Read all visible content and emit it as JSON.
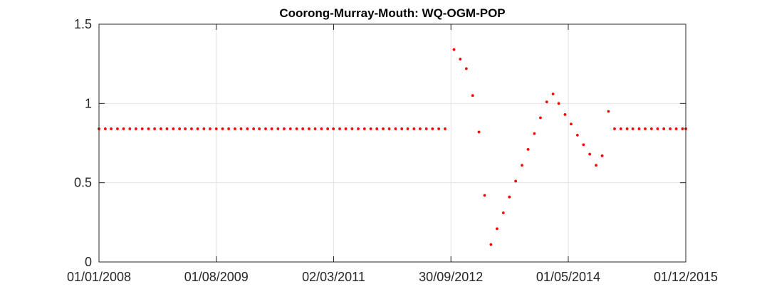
{
  "chart_data": {
    "type": "scatter",
    "title": "Coorong-Murray-Mouth: WQ-OGM-POP",
    "xlabel": "",
    "ylabel": "",
    "x_tick_labels": [
      "01/01/2008",
      "01/08/2009",
      "02/03/2011",
      "30/09/2012",
      "01/05/2014",
      "01/12/2015"
    ],
    "y_tick_labels": [
      "0",
      "0.5",
      "1",
      "1.5"
    ],
    "y_ticks": [
      0,
      0.5,
      1,
      1.5
    ],
    "xlim": [
      "01/01/2008",
      "01/12/2015"
    ],
    "ylim": [
      0,
      1.5
    ],
    "grid": true,
    "marker_color": "#ff0000",
    "series": [
      {
        "points": [
          {
            "x": "01/01/2008",
            "y": 0.84
          },
          {
            "x": "01/02/2008",
            "y": 0.84
          },
          {
            "x": "01/03/2008",
            "y": 0.84
          },
          {
            "x": "01/04/2008",
            "y": 0.84
          },
          {
            "x": "01/05/2008",
            "y": 0.84
          },
          {
            "x": "01/06/2008",
            "y": 0.84
          },
          {
            "x": "01/07/2008",
            "y": 0.84
          },
          {
            "x": "01/08/2008",
            "y": 0.84
          },
          {
            "x": "01/09/2008",
            "y": 0.84
          },
          {
            "x": "01/10/2008",
            "y": 0.84
          },
          {
            "x": "01/11/2008",
            "y": 0.84
          },
          {
            "x": "01/12/2008",
            "y": 0.84
          },
          {
            "x": "01/01/2009",
            "y": 0.84
          },
          {
            "x": "01/02/2009",
            "y": 0.84
          },
          {
            "x": "01/03/2009",
            "y": 0.84
          },
          {
            "x": "01/04/2009",
            "y": 0.84
          },
          {
            "x": "01/05/2009",
            "y": 0.84
          },
          {
            "x": "01/06/2009",
            "y": 0.84
          },
          {
            "x": "01/07/2009",
            "y": 0.84
          },
          {
            "x": "01/08/2009",
            "y": 0.84
          },
          {
            "x": "01/09/2009",
            "y": 0.84
          },
          {
            "x": "01/10/2009",
            "y": 0.84
          },
          {
            "x": "01/11/2009",
            "y": 0.84
          },
          {
            "x": "01/12/2009",
            "y": 0.84
          },
          {
            "x": "01/01/2010",
            "y": 0.84
          },
          {
            "x": "01/02/2010",
            "y": 0.84
          },
          {
            "x": "01/03/2010",
            "y": 0.84
          },
          {
            "x": "01/04/2010",
            "y": 0.84
          },
          {
            "x": "01/05/2010",
            "y": 0.84
          },
          {
            "x": "01/06/2010",
            "y": 0.84
          },
          {
            "x": "01/07/2010",
            "y": 0.84
          },
          {
            "x": "01/08/2010",
            "y": 0.84
          },
          {
            "x": "01/09/2010",
            "y": 0.84
          },
          {
            "x": "01/10/2010",
            "y": 0.84
          },
          {
            "x": "01/11/2010",
            "y": 0.84
          },
          {
            "x": "01/12/2010",
            "y": 0.84
          },
          {
            "x": "01/01/2011",
            "y": 0.84
          },
          {
            "x": "01/02/2011",
            "y": 0.84
          },
          {
            "x": "01/03/2011",
            "y": 0.84
          },
          {
            "x": "01/04/2011",
            "y": 0.84
          },
          {
            "x": "01/05/2011",
            "y": 0.84
          },
          {
            "x": "01/06/2011",
            "y": 0.84
          },
          {
            "x": "01/07/2011",
            "y": 0.84
          },
          {
            "x": "01/08/2011",
            "y": 0.84
          },
          {
            "x": "01/09/2011",
            "y": 0.84
          },
          {
            "x": "01/10/2011",
            "y": 0.84
          },
          {
            "x": "01/11/2011",
            "y": 0.84
          },
          {
            "x": "01/12/2011",
            "y": 0.84
          },
          {
            "x": "01/01/2012",
            "y": 0.84
          },
          {
            "x": "01/02/2012",
            "y": 0.84
          },
          {
            "x": "01/03/2012",
            "y": 0.84
          },
          {
            "x": "01/04/2012",
            "y": 0.84
          },
          {
            "x": "01/05/2012",
            "y": 0.84
          },
          {
            "x": "01/06/2012",
            "y": 0.84
          },
          {
            "x": "01/07/2012",
            "y": 0.84
          },
          {
            "x": "01/08/2012",
            "y": 0.84
          },
          {
            "x": "01/09/2012",
            "y": 0.84
          },
          {
            "x": "15/10/2012",
            "y": 1.34
          },
          {
            "x": "15/11/2012",
            "y": 1.28
          },
          {
            "x": "15/12/2012",
            "y": 1.22
          },
          {
            "x": "15/01/2013",
            "y": 1.05
          },
          {
            "x": "15/02/2013",
            "y": 0.82
          },
          {
            "x": "15/03/2013",
            "y": 0.42
          },
          {
            "x": "15/04/2013",
            "y": 0.11
          },
          {
            "x": "15/05/2013",
            "y": 0.21
          },
          {
            "x": "15/06/2013",
            "y": 0.31
          },
          {
            "x": "15/07/2013",
            "y": 0.41
          },
          {
            "x": "15/08/2013",
            "y": 0.51
          },
          {
            "x": "15/09/2013",
            "y": 0.61
          },
          {
            "x": "15/10/2013",
            "y": 0.71
          },
          {
            "x": "15/11/2013",
            "y": 0.81
          },
          {
            "x": "15/12/2013",
            "y": 0.91
          },
          {
            "x": "15/01/2014",
            "y": 1.01
          },
          {
            "x": "15/02/2014",
            "y": 1.06
          },
          {
            "x": "15/03/2014",
            "y": 1.0
          },
          {
            "x": "15/04/2014",
            "y": 0.93
          },
          {
            "x": "15/05/2014",
            "y": 0.87
          },
          {
            "x": "15/06/2014",
            "y": 0.8
          },
          {
            "x": "15/07/2014",
            "y": 0.74
          },
          {
            "x": "15/08/2014",
            "y": 0.68
          },
          {
            "x": "15/09/2014",
            "y": 0.61
          },
          {
            "x": "15/10/2014",
            "y": 0.67
          },
          {
            "x": "15/11/2014",
            "y": 0.95
          },
          {
            "x": "15/12/2014",
            "y": 0.84
          },
          {
            "x": "15/01/2015",
            "y": 0.84
          },
          {
            "x": "15/02/2015",
            "y": 0.84
          },
          {
            "x": "15/03/2015",
            "y": 0.84
          },
          {
            "x": "15/04/2015",
            "y": 0.84
          },
          {
            "x": "15/05/2015",
            "y": 0.84
          },
          {
            "x": "15/06/2015",
            "y": 0.84
          },
          {
            "x": "15/07/2015",
            "y": 0.84
          },
          {
            "x": "15/08/2015",
            "y": 0.84
          },
          {
            "x": "15/09/2015",
            "y": 0.84
          },
          {
            "x": "15/10/2015",
            "y": 0.84
          },
          {
            "x": "15/11/2015",
            "y": 0.84
          },
          {
            "x": "01/12/2015",
            "y": 0.84
          }
        ]
      }
    ]
  }
}
